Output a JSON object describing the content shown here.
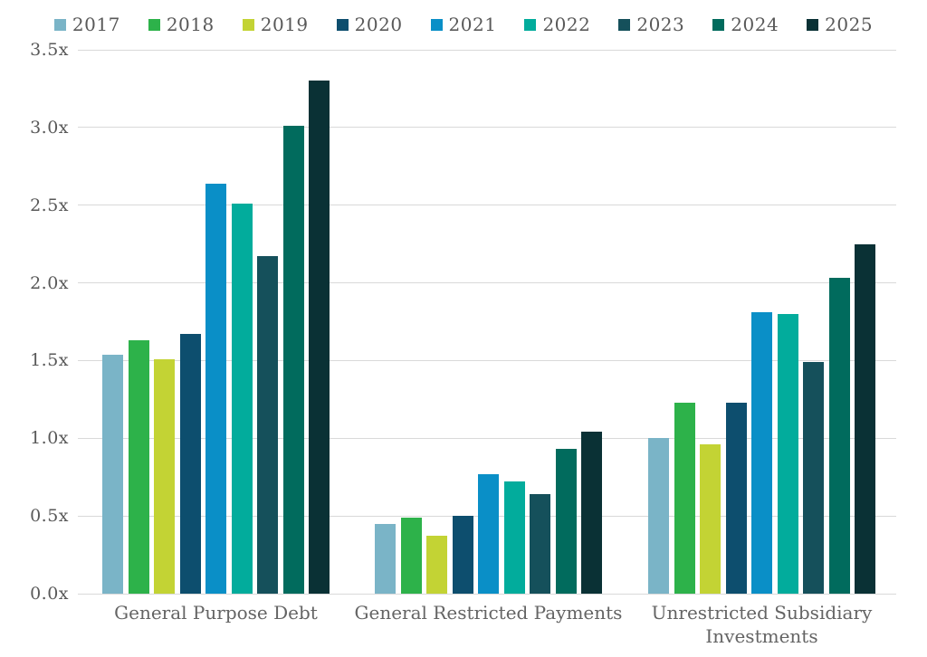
{
  "chart_data": {
    "type": "bar",
    "title": "",
    "xlabel": "",
    "ylabel": "",
    "categories": [
      "General Purpose Debt",
      "General Restricted Payments",
      "Unrestricted Subsidiary Investments"
    ],
    "series": [
      {
        "name": "2017",
        "color": "#7ab4c7",
        "values": [
          1.54,
          0.45,
          1.0
        ]
      },
      {
        "name": "2018",
        "color": "#2db24a",
        "values": [
          1.63,
          0.49,
          1.23
        ]
      },
      {
        "name": "2019",
        "color": "#c3d334",
        "values": [
          1.51,
          0.37,
          0.96
        ]
      },
      {
        "name": "2020",
        "color": "#0d4e6e",
        "values": [
          1.67,
          0.5,
          1.23
        ]
      },
      {
        "name": "2021",
        "color": "#0a8fc7",
        "values": [
          2.64,
          0.77,
          1.81
        ]
      },
      {
        "name": "2022",
        "color": "#02ac9c",
        "values": [
          2.51,
          0.72,
          1.8
        ]
      },
      {
        "name": "2023",
        "color": "#15505b",
        "values": [
          2.17,
          0.64,
          1.49
        ]
      },
      {
        "name": "2024",
        "color": "#016b5d",
        "values": [
          3.01,
          0.93,
          2.03
        ]
      },
      {
        "name": "2025",
        "color": "#0a3135",
        "values": [
          3.3,
          1.04,
          2.25
        ]
      }
    ],
    "y_ticks": [
      "0.0x",
      "0.5x",
      "1.0x",
      "1.5x",
      "2.0x",
      "2.5x",
      "3.0x",
      "3.5x"
    ],
    "y_tick_values": [
      0.0,
      0.5,
      1.0,
      1.5,
      2.0,
      2.5,
      3.0,
      3.5
    ],
    "ylim": [
      0,
      3.5
    ],
    "grid": true,
    "legend_position": "top"
  },
  "colors": {
    "background": "#ffffff",
    "gridline": "#d9d9d9",
    "axis_text": "#595959",
    "category_text": "#646464"
  }
}
